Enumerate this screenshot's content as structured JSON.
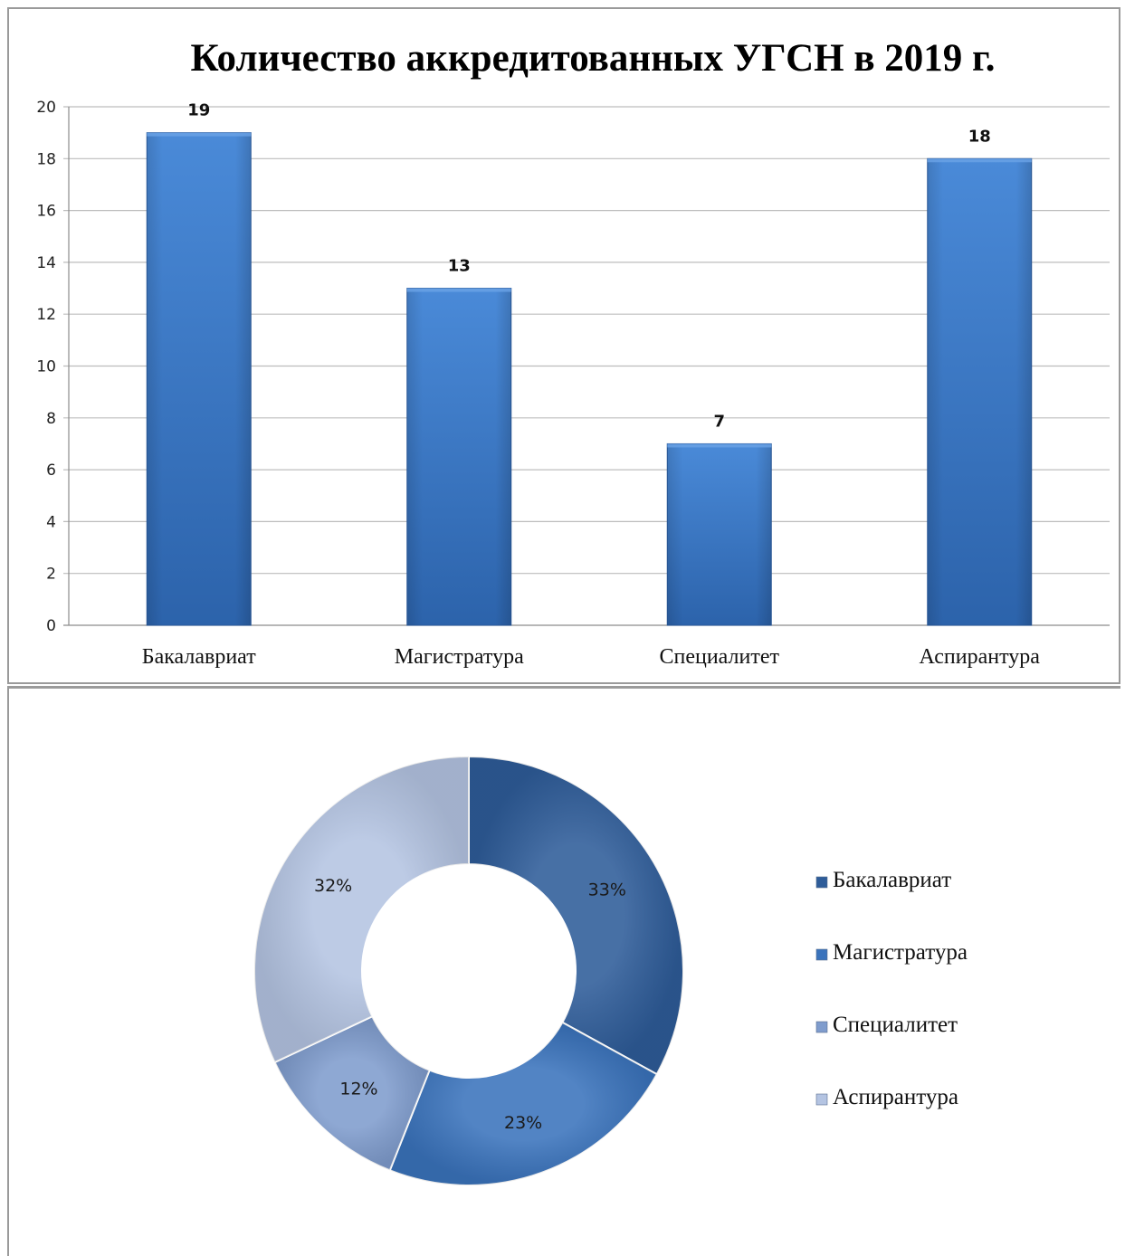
{
  "chart_data": [
    {
      "type": "bar",
      "title": "Количество аккредитованных УГСН в 2019 г.",
      "categories": [
        "Бакалавриат",
        "Магистратура",
        "Специалитет",
        "Аспирантура"
      ],
      "values": [
        19,
        13,
        7,
        18
      ],
      "ylim": [
        0,
        20
      ],
      "yticks": [
        "0",
        "2",
        "4",
        "6",
        "8",
        "10",
        "12",
        "14",
        "16",
        "18",
        "20"
      ],
      "xlabel": "",
      "ylabel": "",
      "grid": true,
      "data_labels": [
        "19",
        "13",
        "7",
        "18"
      ],
      "colors": {
        "bar": "#3a78c6",
        "bar_dark": "#2a5ea3",
        "grid": "#bdbdbd",
        "axis": "#8c8c8c"
      }
    },
    {
      "type": "pie",
      "donut": true,
      "categories": [
        "Бакалавриат",
        "Магистратура",
        "Специалитет",
        "Аспирантура"
      ],
      "values": [
        33,
        23,
        12,
        32
      ],
      "data_labels": [
        "33%",
        "23%",
        "12%",
        "32%"
      ],
      "legend": "right",
      "colors": [
        "#2e5c99",
        "#3a73bc",
        "#7f9ccd",
        "#b4c4e2"
      ]
    }
  ]
}
